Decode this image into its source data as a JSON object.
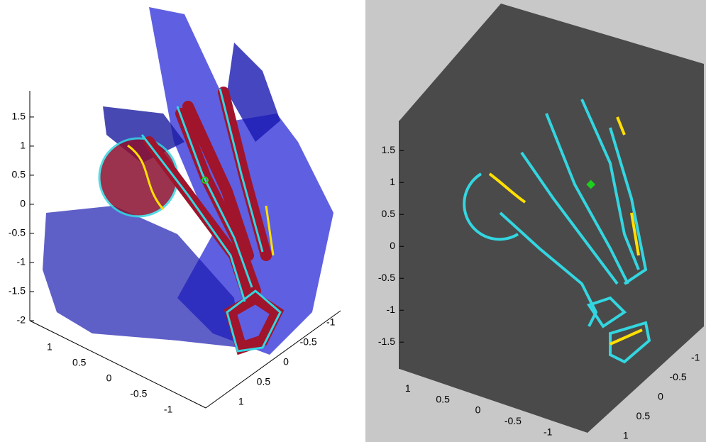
{
  "chart_data": [
    {
      "type": "surface3d",
      "zlim": [
        -2,
        1.95
      ],
      "zticks": [
        1.5,
        1,
        0.5,
        0,
        -0.5,
        -1,
        -1.5,
        -2
      ],
      "xlim": [
        1.25,
        -1.25
      ],
      "xticks": [
        1,
        0.5,
        0,
        -0.5,
        -1
      ],
      "ylim": [
        -1.25,
        1.25
      ],
      "yticks": [
        -1,
        -0.5,
        0,
        0.5,
        1
      ]
    },
    {
      "type": "contour3d",
      "zlim": [
        -1.92,
        1.97
      ],
      "zticks": [
        1.5,
        1,
        0.5,
        0,
        -0.5,
        -1,
        -1.5
      ],
      "xlim": [
        1.2,
        -1.2
      ],
      "xticks": [
        1,
        0.5,
        0,
        -0.5,
        -1
      ],
      "ylim": [
        -1.2,
        1.2
      ],
      "yticks": [
        -1,
        -0.5,
        0,
        0.5,
        1
      ]
    }
  ]
}
